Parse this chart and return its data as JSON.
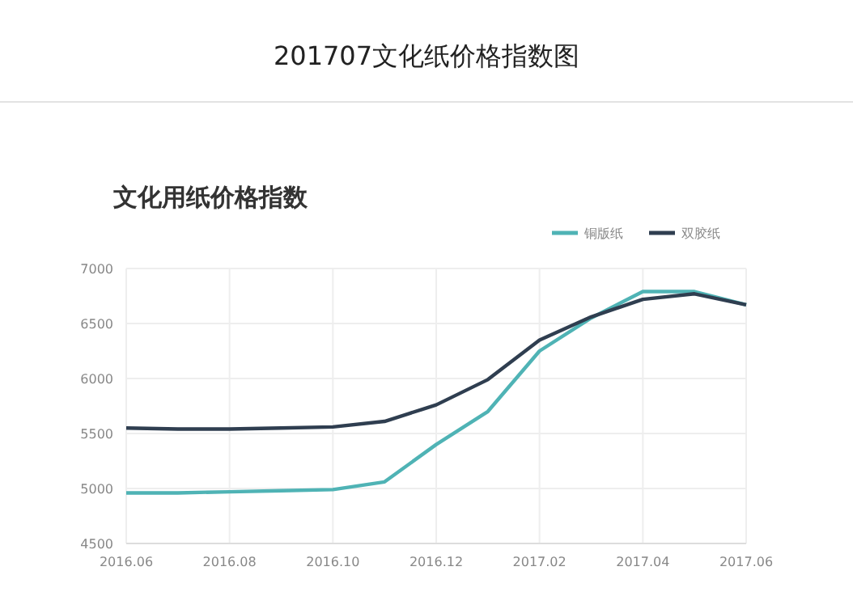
{
  "chart_data": {
    "type": "line",
    "title": "201707文化纸价格指数图",
    "subtitle": "文化用纸价格指数",
    "categories": [
      "2016.06",
      null,
      "2016.08",
      null,
      "2016.10",
      null,
      "2016.12",
      null,
      "2017.02",
      null,
      "2017.04",
      null,
      "2017.06"
    ],
    "series": [
      {
        "name": "铜版纸",
        "color": "#4fb3b5",
        "values": [
          4960,
          4960,
          4970,
          4980,
          4990,
          5060,
          5400,
          5700,
          6250,
          6550,
          6790,
          6790,
          6670
        ]
      },
      {
        "name": "双胶纸",
        "color": "#2f3e50",
        "values": [
          5550,
          5540,
          5540,
          5550,
          5560,
          5610,
          5760,
          5990,
          6350,
          6560,
          6720,
          6770,
          6670
        ]
      }
    ],
    "ylim": [
      4500,
      7000
    ],
    "yticks": [
      4500,
      5000,
      5500,
      6000,
      6500,
      7000
    ],
    "grid": true,
    "legend": "top right",
    "marker": "none",
    "line_style": "solid"
  }
}
